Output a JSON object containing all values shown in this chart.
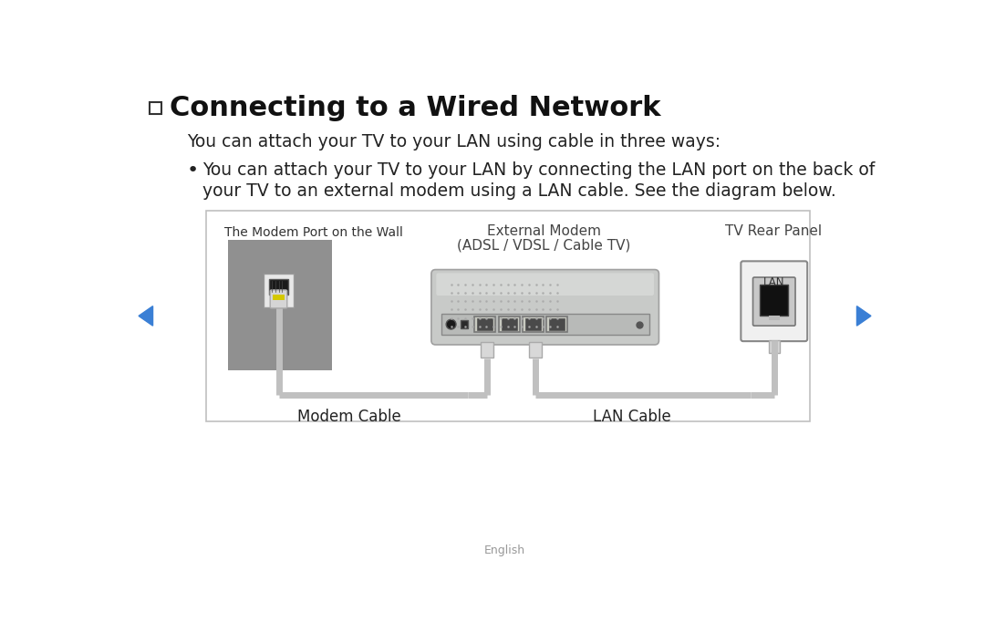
{
  "background_color": "#ffffff",
  "title": "Connecting to a Wired Network",
  "subtitle": "You can attach your TV to your LAN using cable in three ways:",
  "bullet_line1": "You can attach your TV to your LAN by connecting the LAN port on the back of",
  "bullet_line2": "your TV to an external modem using a LAN cable. See the diagram below.",
  "label_wall": "The Modem Port on the Wall",
  "label_modem": "External Modem",
  "label_modem2": "(ADSL / VDSL / Cable TV)",
  "label_tv": "TV Rear Panel",
  "label_modem_cable": "Modem Cable",
  "label_lan_cable": "LAN Cable",
  "label_lan_port": "LAN",
  "nav_color": "#3a7fd5",
  "footer_text": "English",
  "wall_color": "#909090",
  "plate_color": "#e0e0e0",
  "port_dark": "#222222",
  "modem_body": "#c8cac8",
  "modem_light": "#d8dad8",
  "modem_dark": "#b0b2b0",
  "tv_panel_bg": "#f0f0f0",
  "tv_panel_border": "#888888",
  "cable_color": "#c0c0c0",
  "plug_color": "#d0d0d0",
  "plug_tip": "#c8c000",
  "box_border": "#c0c0c0"
}
